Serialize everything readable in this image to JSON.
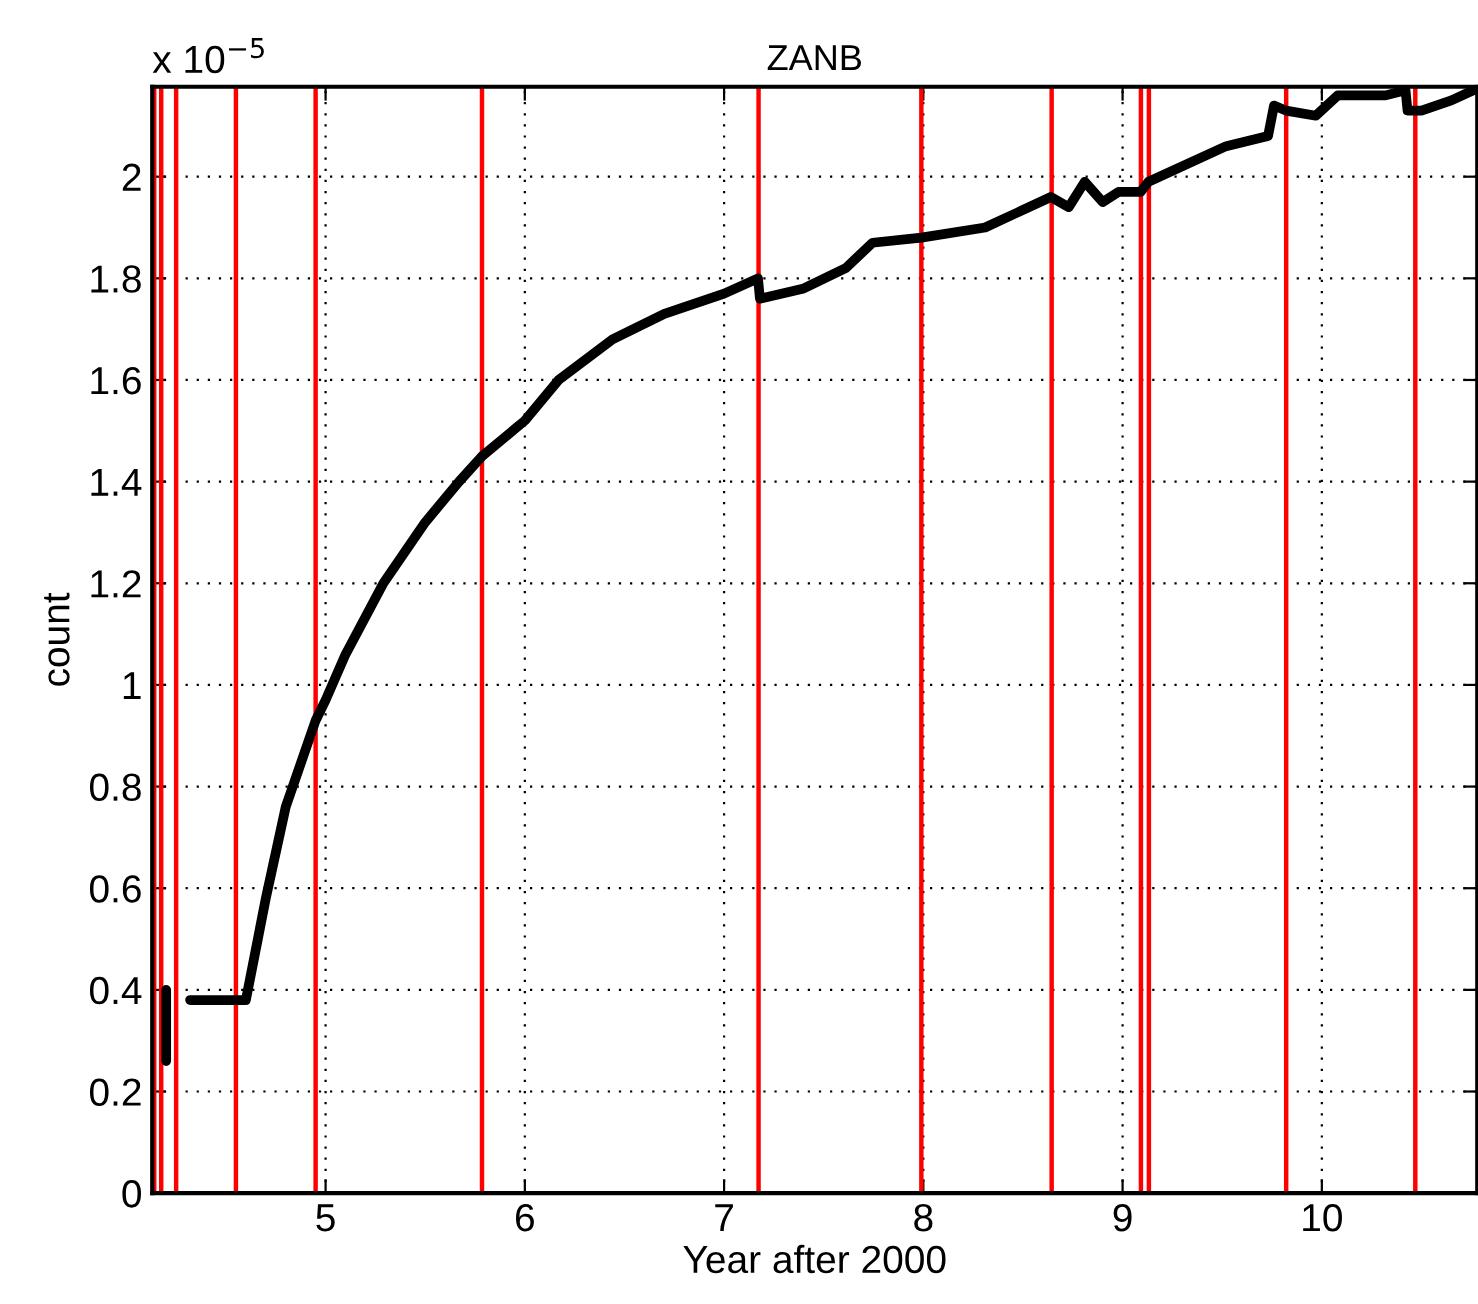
{
  "chart_data": {
    "type": "line",
    "title": "ZANB",
    "xlabel": "Year after 2000",
    "ylabel": "count",
    "annotations": [
      "x 10$^{−5}$"
    ],
    "series": [
      {
        "color": "#000000",
        "x": [
          4.2,
          4.2,
          null,
          4.32,
          4.45,
          4.6,
          4.7,
          4.8,
          4.95,
          5.0,
          5.1,
          5.29,
          5.5,
          5.67,
          5.785,
          6.0,
          6.17,
          6.44,
          6.7,
          7.0,
          7.17,
          7.18,
          7.4,
          7.61,
          7.745,
          7.99,
          8.31,
          8.64,
          8.73,
          8.81,
          8.9,
          8.98,
          9.09,
          9.13,
          9.52,
          9.73,
          9.76,
          9.82,
          9.97,
          10.08,
          10.32,
          10.42,
          10.43,
          10.5,
          10.65,
          10.76
        ],
        "values": [
          0.26,
          0.4,
          null,
          0.38,
          0.38,
          0.38,
          0.58,
          0.76,
          0.93,
          0.97,
          1.06,
          1.2,
          1.32,
          1.4,
          1.45,
          1.52,
          1.6,
          1.68,
          1.73,
          1.77,
          1.8,
          1.76,
          1.78,
          1.82,
          1.87,
          1.88,
          1.9,
          1.96,
          1.94,
          1.99,
          1.95,
          1.97,
          1.97,
          1.99,
          2.06,
          2.08,
          2.14,
          2.13,
          2.12,
          2.16,
          2.16,
          2.17,
          2.13,
          2.13,
          2.15,
          2.17
        ]
      }
    ],
    "xlim": [
      4.13,
      10.78
    ],
    "ylim": [
      0,
      2.177
    ],
    "xticks": [
      5,
      6,
      7,
      8,
      9,
      10
    ],
    "yticks": [
      0,
      0.2,
      0.4,
      0.6,
      0.8,
      1,
      1.2,
      1.4,
      1.6,
      1.8,
      2
    ],
    "grid": true,
    "line_style": "solid",
    "ref_lines": [
      {
        "axis": "x",
        "value": 4.14,
        "color": "#ff0000"
      },
      {
        "axis": "x",
        "value": 4.175,
        "color": "#ff0000"
      },
      {
        "axis": "x",
        "value": 4.25,
        "color": "#ff0000"
      },
      {
        "axis": "x",
        "value": 4.55,
        "color": "#ff0000"
      },
      {
        "axis": "x",
        "value": 4.95,
        "color": "#ff0000"
      },
      {
        "axis": "x",
        "value": 5.785,
        "color": "#ff0000"
      },
      {
        "axis": "x",
        "value": 7.173,
        "color": "#ff0000"
      },
      {
        "axis": "x",
        "value": 7.99,
        "color": "#ff0000"
      },
      {
        "axis": "x",
        "value": 8.644,
        "color": "#ff0000"
      },
      {
        "axis": "x",
        "value": 9.092,
        "color": "#ff0000"
      },
      {
        "axis": "x",
        "value": 9.132,
        "color": "#ff0000"
      },
      {
        "axis": "x",
        "value": 9.821,
        "color": "#ff0000"
      },
      {
        "axis": "x",
        "value": 10.469,
        "color": "#ff0000"
      }
    ]
  }
}
